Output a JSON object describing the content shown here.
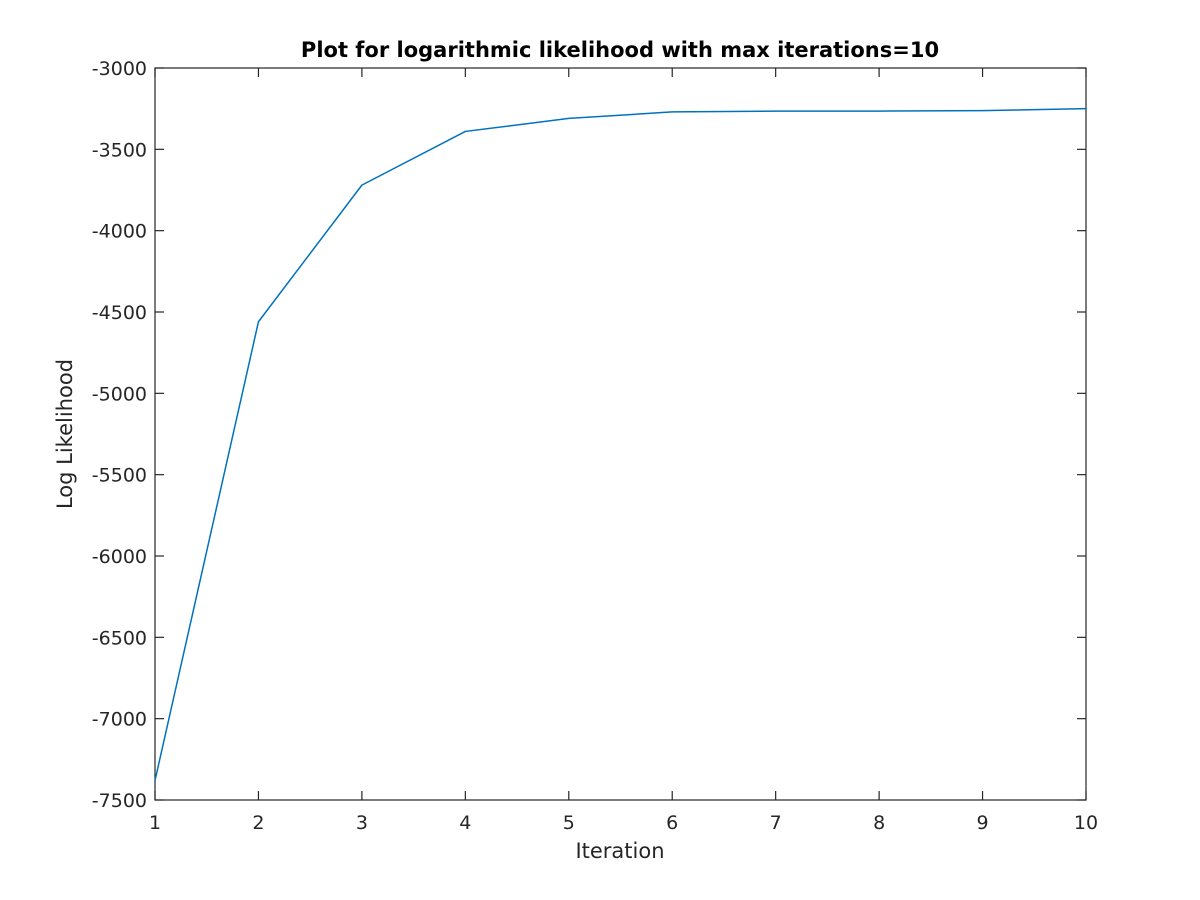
{
  "chart_data": {
    "type": "line",
    "title": "Plot for logarithmic likelihood with max iterations=10",
    "xlabel": "Iteration",
    "ylabel": "Log Likelihood",
    "xlim": [
      1,
      10
    ],
    "ylim": [
      -7500,
      -3000
    ],
    "xticks": [
      1,
      2,
      3,
      4,
      5,
      6,
      7,
      8,
      9,
      10
    ],
    "yticks": [
      -7500,
      -7000,
      -6500,
      -6000,
      -5500,
      -5000,
      -4500,
      -4000,
      -3500,
      -3000
    ],
    "grid": false,
    "box": true,
    "series": [
      {
        "x": [
          1,
          2,
          3,
          4,
          5,
          6,
          7,
          8,
          9,
          10
        ],
        "y": [
          -7380,
          -4560,
          -3720,
          -3390,
          -3310,
          -3270,
          -3265,
          -3265,
          -3262,
          -3250
        ],
        "color": "#0072BD"
      }
    ],
    "axis_color": "#262626",
    "background": "#ffffff"
  }
}
